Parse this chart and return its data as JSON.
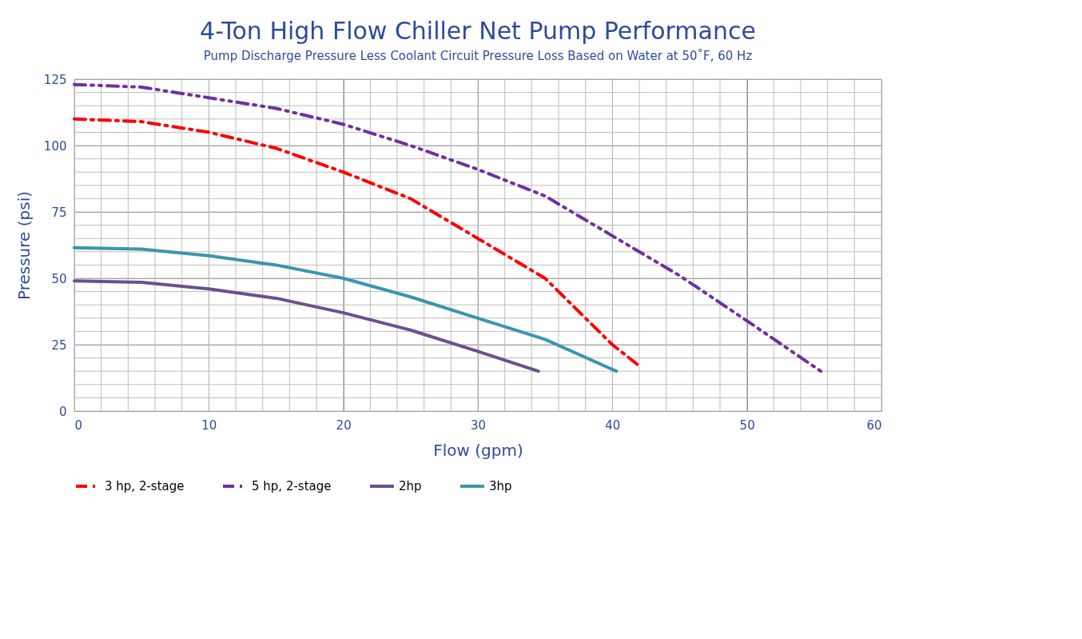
{
  "chart_data": {
    "type": "line",
    "title": "4-Ton High Flow Chiller Net Pump Performance",
    "subtitle": "Pump Discharge Pressure Less Coolant Circuit Pressure Loss Based on Water at 50˚F, 60 Hz",
    "xlabel": "Flow (gpm)",
    "ylabel": "Pressure (psi)",
    "xlim": [
      0,
      60
    ],
    "ylim": [
      0,
      125
    ],
    "xticks": [
      0,
      10,
      20,
      30,
      40,
      50,
      60
    ],
    "yticks": [
      0,
      25,
      50,
      75,
      100,
      125
    ],
    "grid": true,
    "legend": "bottom",
    "marker": "none",
    "series": [
      {
        "name": "3 hp, 2-stage",
        "color": "#ff0000",
        "line_style": "dashed",
        "x": [
          0,
          5,
          10,
          15,
          20,
          25,
          30,
          35,
          40,
          42
        ],
        "values": [
          110,
          109,
          105,
          99,
          90,
          80,
          65,
          50,
          25,
          17
        ]
      },
      {
        "name": "5 hp, 2-stage",
        "color": "#7030a0",
        "line_style": "dotted",
        "x": [
          0,
          5,
          10,
          15,
          20,
          25,
          30,
          35,
          40,
          45,
          50,
          55.5
        ],
        "values": [
          123,
          122,
          118,
          114,
          108,
          100,
          91,
          81,
          66,
          51,
          34,
          15
        ]
      },
      {
        "name": "2hp",
        "color": "#6a5090",
        "line_style": "solid",
        "x": [
          0,
          5,
          10,
          15,
          20,
          25,
          30,
          34.5
        ],
        "values": [
          49,
          48.5,
          46,
          42.5,
          37,
          30.5,
          22.5,
          15
        ]
      },
      {
        "name": "3hp",
        "color": "#3a96ae",
        "line_style": "solid",
        "x": [
          0,
          5,
          10,
          15,
          20,
          25,
          30,
          35,
          40.3
        ],
        "values": [
          61.5,
          61,
          58.5,
          55,
          50,
          43,
          35,
          27,
          15
        ]
      }
    ]
  }
}
